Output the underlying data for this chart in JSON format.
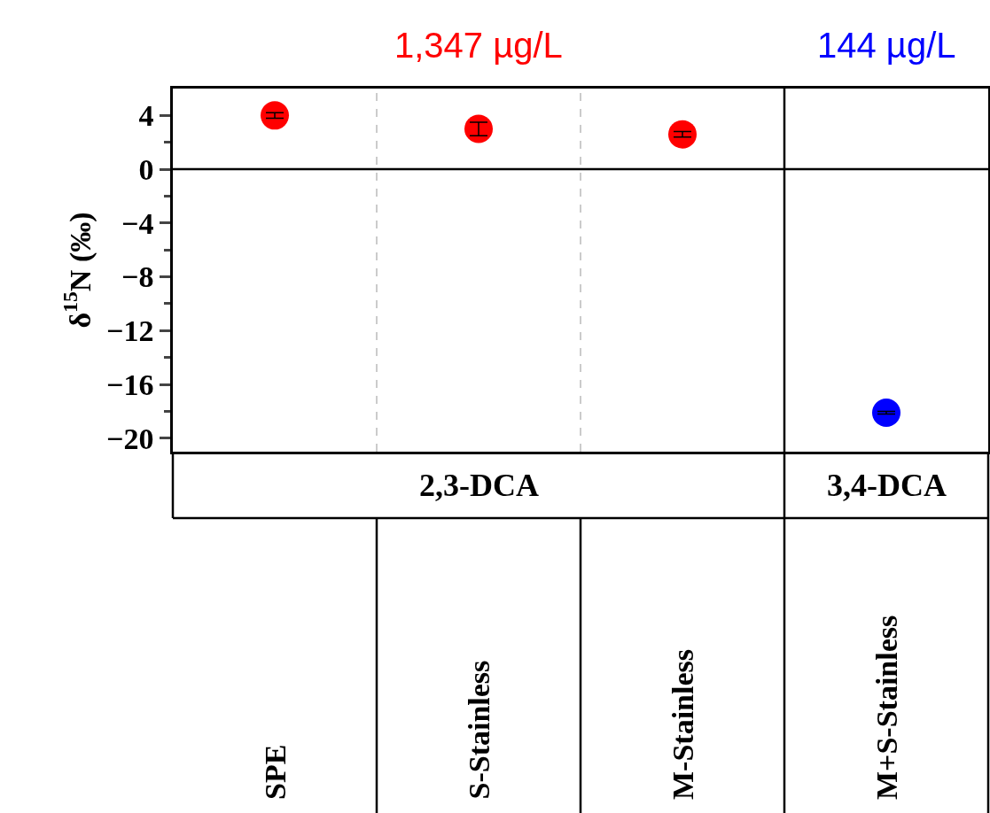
{
  "chart_data": {
    "type": "scatter",
    "categories": [
      "SPE",
      "S-Stainless",
      "M-Stainless",
      "M+S-Stainless"
    ],
    "series": [
      {
        "color": "#ff0000",
        "values": [
          4.0,
          3.0,
          2.6,
          null
        ],
        "errors": [
          0.2,
          0.5,
          0.2,
          null
        ]
      },
      {
        "color": "#0000ff",
        "values": [
          null,
          null,
          null,
          -18.1
        ],
        "errors": [
          null,
          null,
          null,
          0.1
        ]
      }
    ],
    "ylabel": "δ$^{15}$N (‰)",
    "ylim": [
      -21,
      6
    ],
    "yticks": [
      4,
      {
        "value": 2,
        "label": null
      },
      0,
      {
        "value": -2,
        "label": null
      },
      {
        "value": -4,
        "label": "−4"
      },
      {
        "value": -6,
        "label": null
      },
      {
        "value": -8,
        "label": "−8"
      },
      {
        "value": -10,
        "label": null
      },
      {
        "value": -12,
        "label": "−12"
      },
      {
        "value": -14,
        "label": null
      },
      {
        "value": -16,
        "label": "−16"
      },
      {
        "value": -18,
        "label": null
      },
      {
        "value": -20,
        "label": "−20"
      }
    ],
    "ref_lines": [
      {
        "axis": "y",
        "value": 0,
        "color": "#000000",
        "line_style": "solid"
      }
    ],
    "annotations": [
      "1,347 µg/L",
      "144 µg/L",
      "2,3-DCA",
      "3,4-DCA"
    ],
    "marker": "circle",
    "legend": false
  }
}
